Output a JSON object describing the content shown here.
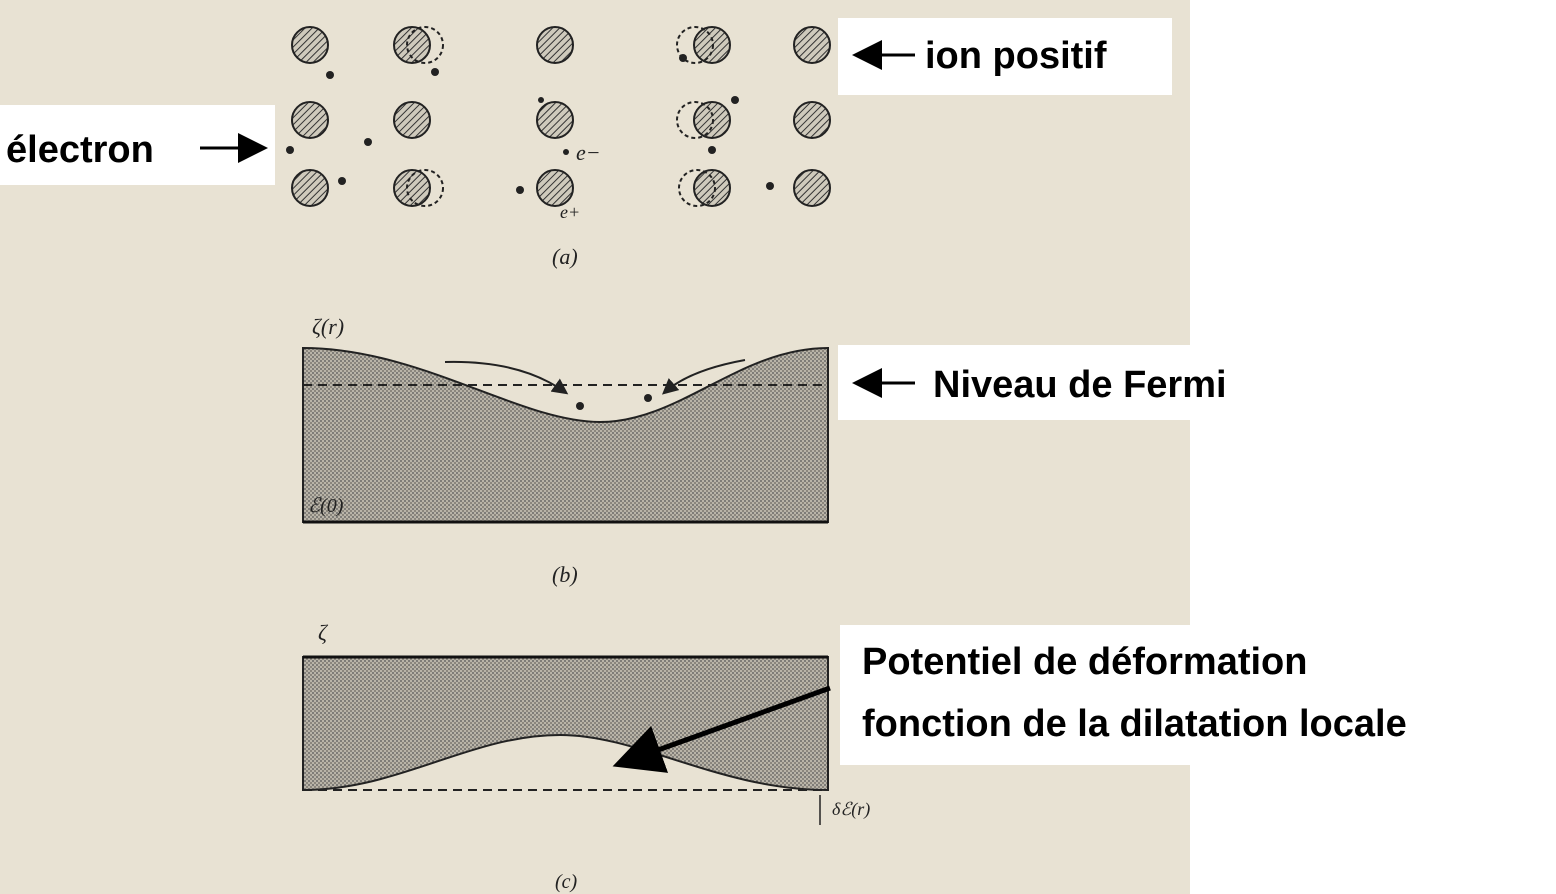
{
  "annotations": {
    "ion": "ion positif",
    "electron": "électron",
    "fermi": "Niveau de Fermi",
    "potential": [
      "Potentiel de déformation",
      "fonction de la dilatation locale"
    ]
  },
  "figure": {
    "a": {
      "caption": "(a)",
      "electron_label": "e−",
      "hole_label": "e+"
    },
    "b": {
      "caption": "(b)",
      "top_label": "ζ(r)",
      "bottom_label": "ℰ(0)"
    },
    "c": {
      "caption": "(c)",
      "top_label": "ζ",
      "shift_label": "δℰ(r)"
    }
  }
}
